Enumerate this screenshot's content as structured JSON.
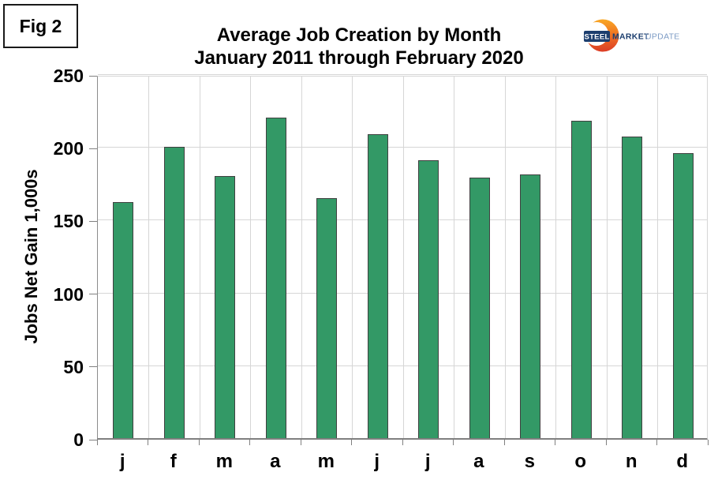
{
  "figure_label": "Fig 2",
  "logo": {
    "steel": "STEEL",
    "market": "MARKET",
    "update": "UPDATE",
    "navy": "#1C3E6E",
    "update_color": "#7E9CC5",
    "crescent_top": "#F9A825",
    "crescent_bottom": "#DC3D26"
  },
  "chart_data": {
    "type": "bar",
    "title": "Average Job Creation by Month",
    "subtitle": "January 2011 through February 2020",
    "categories": [
      "j",
      "f",
      "m",
      "a",
      "m",
      "j",
      "j",
      "a",
      "s",
      "o",
      "n",
      "d"
    ],
    "values": [
      162,
      200,
      180,
      220,
      165,
      209,
      191,
      179,
      181,
      218,
      207,
      196
    ],
    "xlabel": "",
    "ylabel": "Jobs Net Gain 1,000s",
    "ylim": [
      0,
      250
    ],
    "yticks": [
      0,
      50,
      100,
      150,
      200,
      250
    ],
    "grid": true,
    "legend_position": "none",
    "bar_color": "#339966",
    "bar_border_color": "#404040",
    "gridline_color": "#D6D6D6",
    "axis_color": "#808080"
  }
}
